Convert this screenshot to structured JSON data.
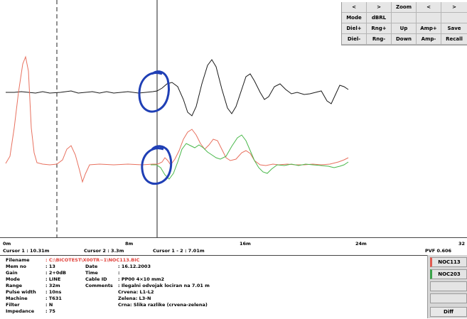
{
  "grid_buttons": [
    [
      "<",
      ">",
      "Zoom",
      "<",
      ">"
    ],
    [
      "Mode",
      "dBRL",
      "",
      "",
      ""
    ],
    [
      "Diel+",
      "Rng+",
      "Up",
      "Amp+",
      "Save"
    ],
    [
      "Diel-",
      "Rng-",
      "Down",
      "Amp-",
      "Recall"
    ]
  ],
  "axis": {
    "tick_0": "0m",
    "tick_8": "8m",
    "tick_16": "16m",
    "tick_24": "24m",
    "tick_32": "32",
    "cursor1": "Cursor 1 : 10.31m",
    "cursor2": "Cursor 2 : 3.3m",
    "cursor12": "Cursor 1 - 2 : 7.01m",
    "pvf": "PVF 0.606"
  },
  "info": {
    "filename_key": "Filename",
    "filename_val": ": C:\\BICOTEST\\X00TR~1\\NOC113.BIC",
    "memno_key": "Mem no",
    "memno_val": ": 13",
    "date_key": "Date",
    "date_val": ": 16.12.2003",
    "gain_key": "Gain",
    "gain_val": ": 2+0dB",
    "time_key": "Time",
    "time_val": ":",
    "mode_key": "Mode",
    "mode_val": ": LINE",
    "cableid_key": "Cable ID",
    "cableid_val": ": PP00 4×10 mm2",
    "range_key": "Range",
    "range_val": ": 32m",
    "comments_key": "Comments",
    "comments_val": ": Ilegalni odvojak lociran na 7.01 m",
    "pulse_key": "Pulse width",
    "pulse_val": ": 10ns",
    "comment2": "Crvena: L1-L2",
    "machine_key": "Machine",
    "machine_val": ": T631",
    "comment3": "Zelena: L3-N",
    "filter_key": "Filter",
    "filter_val": ": N",
    "comment4": "Crna: Slika razlike (crvena-zelena)",
    "impedance_key": "Impedance",
    "impedance_val": ": 75"
  },
  "side": {
    "noc113": "NOC113",
    "noc203": "NOC203",
    "diff": "Diff"
  },
  "colors": {
    "black_trace": "#1a1a1a",
    "red_trace": "#e8715f",
    "green_trace": "#49b84a",
    "annotation_blue": "#1f3fb5"
  }
}
